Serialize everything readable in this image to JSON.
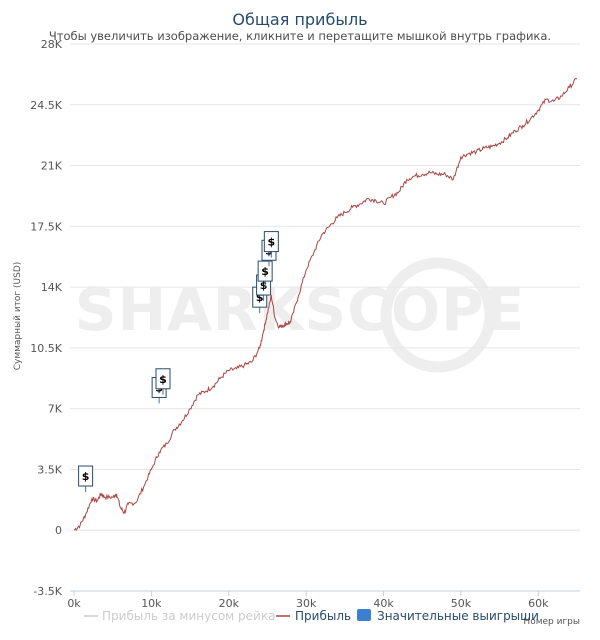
{
  "chart_data": {
    "type": "line",
    "title": "Общая прибыль",
    "subtitle": "Чтобы увеличить изображение, кликните и перетащите мышкой внутрь графика.",
    "ylabel": "Суммарный итог (USD)",
    "xlabel": "Номер игры",
    "ylim": [
      -3500,
      28000
    ],
    "xlim": [
      0,
      65000
    ],
    "y_ticks": [
      {
        "value": 28000,
        "label": "28K"
      },
      {
        "value": 24500,
        "label": "24.5K"
      },
      {
        "value": 21000,
        "label": "21K"
      },
      {
        "value": 17500,
        "label": "17.5K"
      },
      {
        "value": 14000,
        "label": "14K"
      },
      {
        "value": 10500,
        "label": "10.5K"
      },
      {
        "value": 7000,
        "label": "7K"
      },
      {
        "value": 3500,
        "label": "3.5K"
      },
      {
        "value": 0,
        "label": "0"
      },
      {
        "value": -3500,
        "label": "-3.5K"
      }
    ],
    "x_ticks": [
      {
        "value": 0,
        "label": "0k"
      },
      {
        "value": 10000,
        "label": "10k"
      },
      {
        "value": 20000,
        "label": "20k"
      },
      {
        "value": 30000,
        "label": "30k"
      },
      {
        "value": 40000,
        "label": "40k"
      },
      {
        "value": 50000,
        "label": "50k"
      },
      {
        "value": 60000,
        "label": "60k"
      }
    ],
    "grid": true,
    "legend_position": "bottom",
    "series": [
      {
        "name": "Прибыль за минусом рейка",
        "color": "#cccccc",
        "hidden": true,
        "points": []
      },
      {
        "name": "Прибыль",
        "color": "#aa4643",
        "points": [
          [
            0,
            0
          ],
          [
            800,
            300
          ],
          [
            1500,
            900
          ],
          [
            2300,
            1800
          ],
          [
            3000,
            1700
          ],
          [
            3500,
            2100
          ],
          [
            4000,
            1900
          ],
          [
            5000,
            1900
          ],
          [
            5500,
            2100
          ],
          [
            6000,
            1300
          ],
          [
            6500,
            1000
          ],
          [
            7000,
            1500
          ],
          [
            8000,
            1600
          ],
          [
            9000,
            2500
          ],
          [
            10000,
            3500
          ],
          [
            11000,
            4500
          ],
          [
            12000,
            5000
          ],
          [
            13000,
            5800
          ],
          [
            14000,
            6300
          ],
          [
            15000,
            7000
          ],
          [
            16000,
            7800
          ],
          [
            17000,
            8000
          ],
          [
            18000,
            8300
          ],
          [
            19000,
            8800
          ],
          [
            20000,
            9200
          ],
          [
            21000,
            9300
          ],
          [
            22000,
            9500
          ],
          [
            23000,
            9700
          ],
          [
            24000,
            10500
          ],
          [
            24500,
            11500
          ],
          [
            25000,
            12500
          ],
          [
            25500,
            13500
          ],
          [
            26000,
            12200
          ],
          [
            26500,
            11700
          ],
          [
            27000,
            11800
          ],
          [
            27500,
            11900
          ],
          [
            28000,
            12000
          ],
          [
            29000,
            13500
          ],
          [
            30000,
            15000
          ],
          [
            31000,
            16000
          ],
          [
            32000,
            17000
          ],
          [
            33000,
            17500
          ],
          [
            34000,
            18000
          ],
          [
            35000,
            18300
          ],
          [
            36000,
            18600
          ],
          [
            37000,
            18800
          ],
          [
            38000,
            19100
          ],
          [
            39000,
            19000
          ],
          [
            40000,
            18800
          ],
          [
            41000,
            19200
          ],
          [
            42000,
            19500
          ],
          [
            43000,
            20200
          ],
          [
            44000,
            20400
          ],
          [
            45000,
            20500
          ],
          [
            46000,
            20600
          ],
          [
            47000,
            20500
          ],
          [
            48000,
            20500
          ],
          [
            49000,
            20200
          ],
          [
            50000,
            21500
          ],
          [
            51000,
            21700
          ],
          [
            52000,
            21800
          ],
          [
            53000,
            22000
          ],
          [
            54000,
            22100
          ],
          [
            55000,
            22300
          ],
          [
            56000,
            22600
          ],
          [
            57000,
            23000
          ],
          [
            58000,
            23300
          ],
          [
            59000,
            23700
          ],
          [
            60000,
            24200
          ],
          [
            61000,
            24800
          ],
          [
            62000,
            24700
          ],
          [
            63000,
            25000
          ],
          [
            64000,
            25500
          ],
          [
            65000,
            26000
          ]
        ]
      },
      {
        "name": "Значительные выигрыши",
        "color": "#3b7fd1",
        "marker_symbol": "$",
        "points": [
          [
            1500,
            2200
          ],
          [
            11000,
            7300
          ],
          [
            11500,
            7800
          ],
          [
            24000,
            12500
          ],
          [
            24500,
            13200
          ],
          [
            24700,
            14000
          ],
          [
            25200,
            15200
          ],
          [
            25500,
            15700
          ]
        ]
      }
    ]
  },
  "watermark": "SHARKSCOPE"
}
